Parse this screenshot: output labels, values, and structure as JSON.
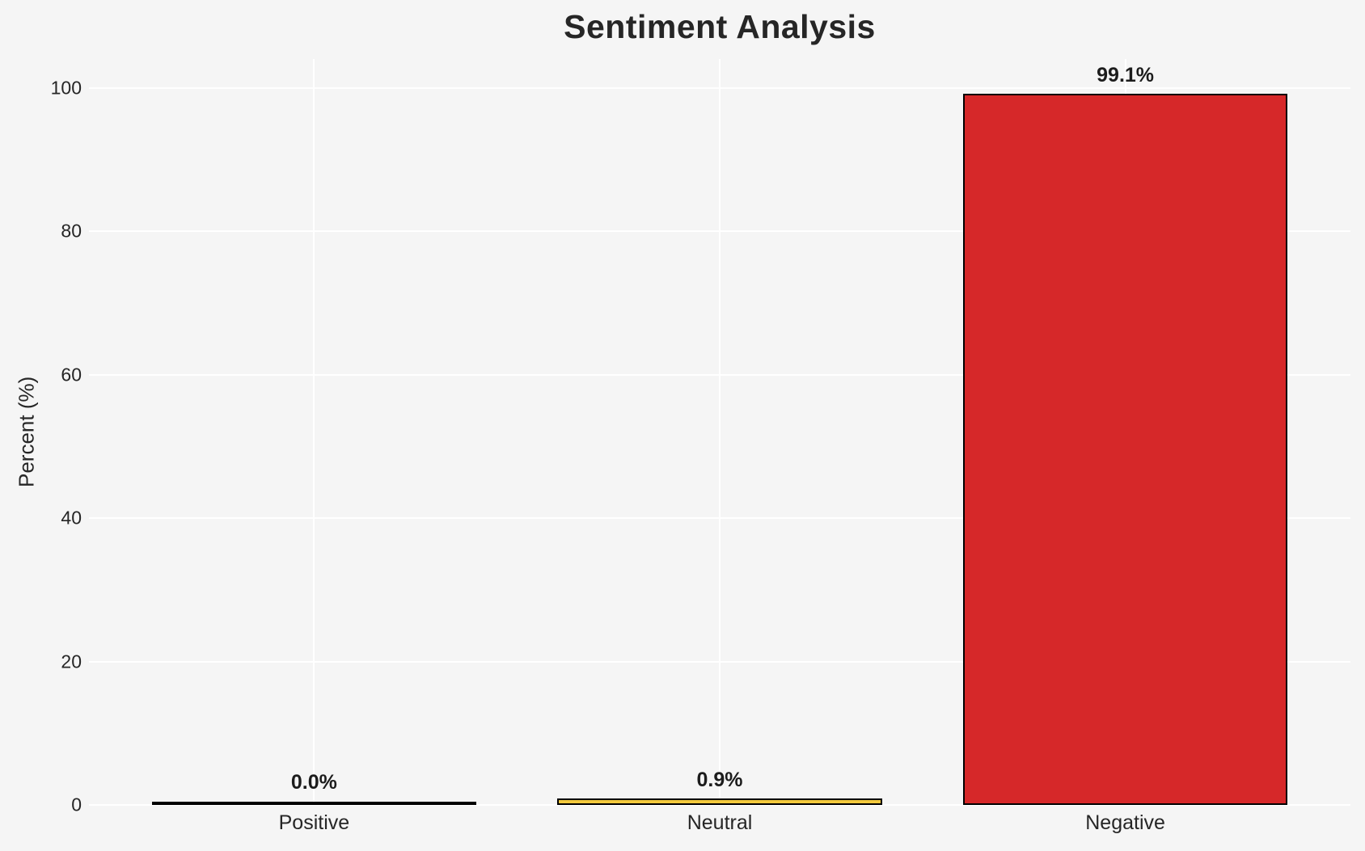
{
  "chart_data": {
    "type": "bar",
    "title": "Sentiment Analysis",
    "categories": [
      "Positive",
      "Neutral",
      "Negative"
    ],
    "values": [
      0.0,
      0.9,
      99.1
    ],
    "value_labels": [
      "0.0%",
      "0.9%",
      "99.1%"
    ],
    "bar_fill_colors": [
      null,
      "#f3c93d",
      "#d62829"
    ],
    "bar_edge_color": "#000000",
    "xlabel": "",
    "ylabel": "Percent (%)",
    "yticks": [
      0,
      20,
      40,
      60,
      80,
      100
    ],
    "ylim": [
      0,
      104
    ],
    "xlim": [
      -0.555,
      2.555
    ],
    "bar_width_units": 0.8,
    "grid": "on",
    "grid_color": "#ffffff",
    "background_color": "#f5f5f5",
    "text_color": "#262626",
    "legend": "none"
  }
}
